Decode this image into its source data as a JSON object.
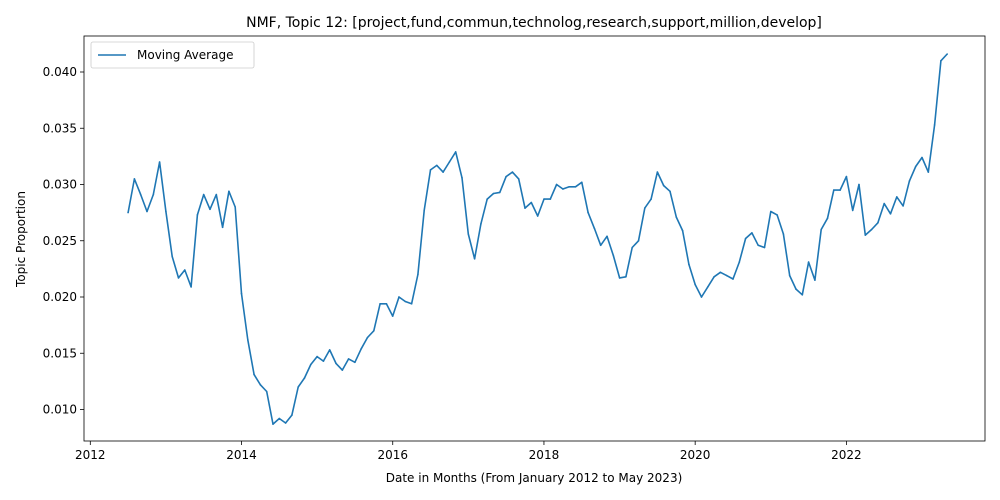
{
  "chart_data": {
    "type": "line",
    "title": "NMF, Topic 12: [project,fund,commun,technolog,research,support,million,develop]",
    "xlabel": "Date in Months (From January 2012 to May 2023)",
    "ylabel": "Topic Proportion",
    "x_ticks": [
      "2012",
      "2014",
      "2016",
      "2018",
      "2020",
      "2022"
    ],
    "y_ticks": [
      "0.010",
      "0.015",
      "0.020",
      "0.025",
      "0.030",
      "0.035",
      "0.040"
    ],
    "xlim": [
      "2011-12",
      "2023-11"
    ],
    "ylim": [
      0.0072,
      0.0432
    ],
    "grid": false,
    "legend": "upper-left",
    "series": [
      {
        "name": "Moving Average",
        "color": "#1f77b4",
        "x": [
          "2012-07",
          "2012-08",
          "2012-09",
          "2012-10",
          "2012-11",
          "2012-12",
          "2013-01",
          "2013-02",
          "2013-03",
          "2013-04",
          "2013-05",
          "2013-06",
          "2013-07",
          "2013-08",
          "2013-09",
          "2013-10",
          "2013-11",
          "2013-12",
          "2014-01",
          "2014-02",
          "2014-03",
          "2014-04",
          "2014-05",
          "2014-06",
          "2014-07",
          "2014-08",
          "2014-09",
          "2014-10",
          "2014-11",
          "2014-12",
          "2015-01",
          "2015-02",
          "2015-03",
          "2015-04",
          "2015-05",
          "2015-06",
          "2015-07",
          "2015-08",
          "2015-09",
          "2015-10",
          "2015-11",
          "2015-12",
          "2016-01",
          "2016-02",
          "2016-03",
          "2016-04",
          "2016-05",
          "2016-06",
          "2016-07",
          "2016-08",
          "2016-09",
          "2016-10",
          "2016-11",
          "2016-12",
          "2017-01",
          "2017-02",
          "2017-03",
          "2017-04",
          "2017-05",
          "2017-06",
          "2017-07",
          "2017-08",
          "2017-09",
          "2017-10",
          "2017-11",
          "2017-12",
          "2018-01",
          "2018-02",
          "2018-03",
          "2018-04",
          "2018-05",
          "2018-06",
          "2018-07",
          "2018-08",
          "2018-09",
          "2018-10",
          "2018-11",
          "2018-12",
          "2019-01",
          "2019-02",
          "2019-03",
          "2019-04",
          "2019-05",
          "2019-06",
          "2019-07",
          "2019-08",
          "2019-09",
          "2019-10",
          "2019-11",
          "2019-12",
          "2020-01",
          "2020-02",
          "2020-03",
          "2020-04",
          "2020-05",
          "2020-06",
          "2020-07",
          "2020-08",
          "2020-09",
          "2020-10",
          "2020-11",
          "2020-12",
          "2021-01",
          "2021-02",
          "2021-03",
          "2021-04",
          "2021-05",
          "2021-06",
          "2021-07",
          "2021-08",
          "2021-09",
          "2021-10",
          "2021-11",
          "2021-12",
          "2022-01",
          "2022-02",
          "2022-03",
          "2022-04",
          "2022-05",
          "2022-06",
          "2022-07",
          "2022-08",
          "2022-09",
          "2022-10",
          "2022-11",
          "2022-12",
          "2023-01",
          "2023-02",
          "2023-03",
          "2023-04",
          "2023-05"
        ],
        "values": [
          0.0275,
          0.0305,
          0.0291,
          0.0276,
          0.0291,
          0.032,
          0.0276,
          0.0236,
          0.0217,
          0.0224,
          0.0209,
          0.0273,
          0.0291,
          0.0278,
          0.0291,
          0.0262,
          0.0294,
          0.028,
          0.0203,
          0.0162,
          0.0131,
          0.0122,
          0.0116,
          0.0087,
          0.0092,
          0.0088,
          0.0095,
          0.012,
          0.0128,
          0.014,
          0.0147,
          0.0143,
          0.0153,
          0.0141,
          0.0135,
          0.0145,
          0.0142,
          0.0154,
          0.0164,
          0.017,
          0.0194,
          0.0194,
          0.0183,
          0.02,
          0.0196,
          0.0194,
          0.022,
          0.0277,
          0.0313,
          0.0317,
          0.0311,
          0.032,
          0.0329,
          0.0306,
          0.0256,
          0.0234,
          0.0265,
          0.0287,
          0.0292,
          0.0293,
          0.0307,
          0.0311,
          0.0305,
          0.0279,
          0.0284,
          0.0272,
          0.0287,
          0.0287,
          0.03,
          0.0296,
          0.0298,
          0.0298,
          0.0302,
          0.0275,
          0.0261,
          0.0246,
          0.0254,
          0.0237,
          0.0217,
          0.0218,
          0.0244,
          0.025,
          0.0279,
          0.0287,
          0.0311,
          0.0299,
          0.0294,
          0.0271,
          0.0259,
          0.0229,
          0.0211,
          0.02,
          0.0209,
          0.0218,
          0.0222,
          0.0219,
          0.0216,
          0.0231,
          0.0252,
          0.0257,
          0.0246,
          0.0244,
          0.0276,
          0.0273,
          0.0256,
          0.0219,
          0.0207,
          0.0202,
          0.0231,
          0.0215,
          0.026,
          0.027,
          0.0295,
          0.0295,
          0.0307,
          0.0277,
          0.03,
          0.0255,
          0.026,
          0.0266,
          0.0283,
          0.0274,
          0.0289,
          0.0281,
          0.0303,
          0.0316,
          0.0324,
          0.0311,
          0.0353,
          0.041,
          0.0416
        ]
      }
    ]
  }
}
